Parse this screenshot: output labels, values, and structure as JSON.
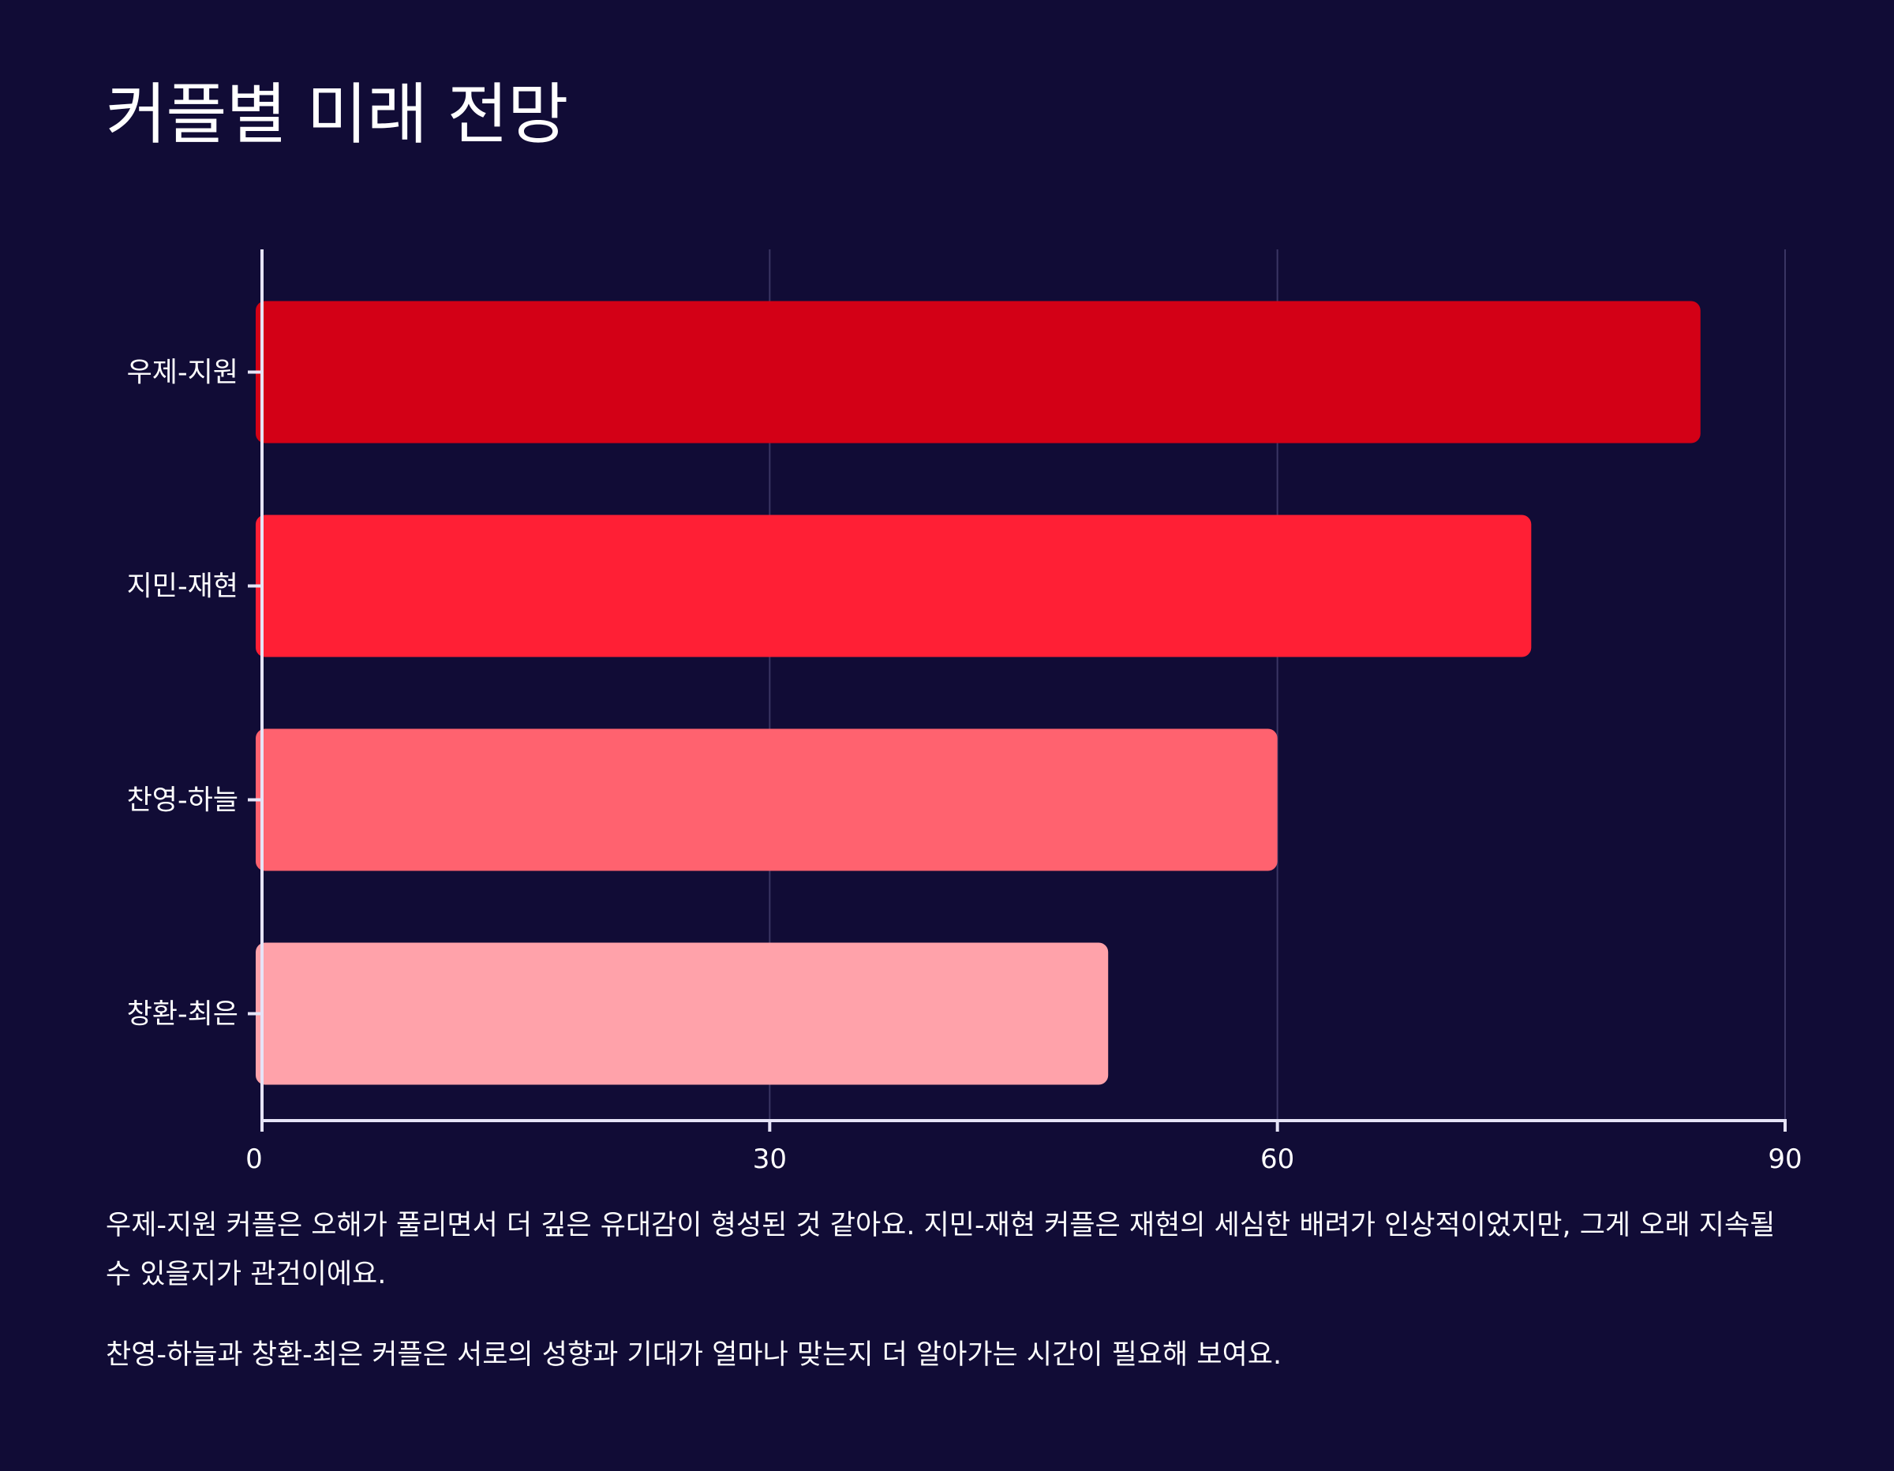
{
  "title": "커플별 미래 전망",
  "chart_data": {
    "type": "bar",
    "orientation": "horizontal",
    "categories": [
      "우제-지원",
      "지민-재현",
      "찬영-하늘",
      "창환-최은"
    ],
    "values": [
      85,
      75,
      60,
      50
    ],
    "colors": [
      "#d30016",
      "#ff1f35",
      "#ff626f",
      "#ffa2aa"
    ],
    "xlim": [
      0,
      90
    ],
    "xticks": [
      0,
      30,
      60,
      90
    ],
    "xlabel": "",
    "ylabel": "",
    "grid": "vertical"
  },
  "notes": [
    "우제-지원 커플은 오해가 풀리면서 더 깊은 유대감이 형성된 것 같아요. 지민-재현 커플은 재현의 세심한 배려가 인상적이었지만, 그게 오래 지속될 수 있을지가 관건이에요.",
    "찬영-하늘과 창환-최은 커플은 서로의 성향과 기대가 얼마나 맞는지 더 알아가는 시간이 필요해 보여요."
  ],
  "colors": {
    "background": "#110c36",
    "axis": "#e6e4f7",
    "grid": "#3a3563",
    "text": "#ffffff"
  }
}
